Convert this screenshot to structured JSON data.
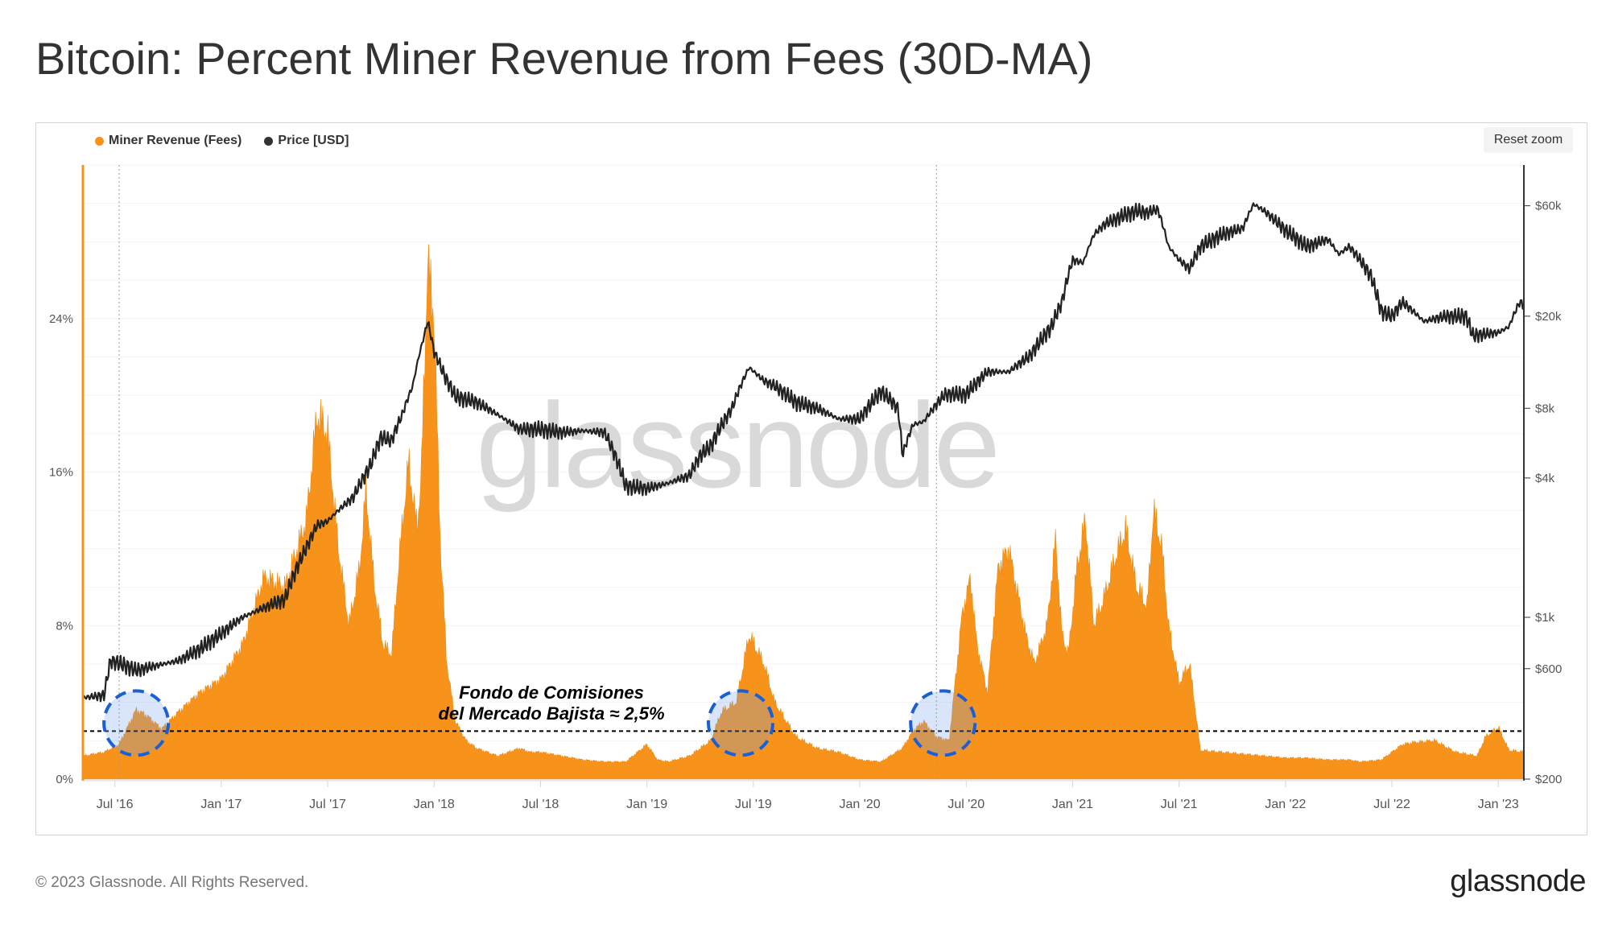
{
  "title": "Bitcoin: Percent Miner Revenue from Fees (30D-MA)",
  "legend": [
    {
      "label": "Miner Revenue (Fees)",
      "color": "#f7931a"
    },
    {
      "label": "Price [USD]",
      "color": "#333333"
    }
  ],
  "reset_zoom": "Reset zoom",
  "watermark": "glassnode",
  "annotation": {
    "line1": "Fondo de Comisiones",
    "line2": "del Mercado Bajista ≈ 2,5%",
    "level": 2.5
  },
  "footer": {
    "copyright": "© 2023 Glassnode. All Rights Reserved.",
    "logo": "glassnode"
  },
  "colors": {
    "fees": "#f7931a",
    "price": "#222222",
    "circle": "#1a5fd8"
  },
  "chart_data": {
    "type": "area",
    "title": "Bitcoin: Percent Miner Revenue from Fees (30D-MA)",
    "x_range": [
      2016.35,
      2023.12
    ],
    "x_ticks": [
      {
        "label": "Jul '16",
        "t": 2016.5
      },
      {
        "label": "Jan '17",
        "t": 2017.0
      },
      {
        "label": "Jul '17",
        "t": 2017.5
      },
      {
        "label": "Jan '18",
        "t": 2018.0
      },
      {
        "label": "Jul '18",
        "t": 2018.5
      },
      {
        "label": "Jan '19",
        "t": 2019.0
      },
      {
        "label": "Jul '19",
        "t": 2019.5
      },
      {
        "label": "Jan '20",
        "t": 2020.0
      },
      {
        "label": "Jul '20",
        "t": 2020.5
      },
      {
        "label": "Jan '21",
        "t": 2021.0
      },
      {
        "label": "Jul '21",
        "t": 2021.5
      },
      {
        "label": "Jan '22",
        "t": 2022.0
      },
      {
        "label": "Jul '22",
        "t": 2022.5
      },
      {
        "label": "Jan '23",
        "t": 2023.0
      }
    ],
    "left_axis": {
      "label": "Miner Revenue (Fees) %",
      "ylim": [
        0,
        32
      ],
      "ticks": [
        {
          "label": "0%",
          "v": 0
        },
        {
          "label": "8%",
          "v": 8
        },
        {
          "label": "16%",
          "v": 16
        },
        {
          "label": "24%",
          "v": 24
        }
      ]
    },
    "right_axis": {
      "label": "Price [USD]",
      "scale": "log",
      "ylim": [
        200,
        90000
      ],
      "ticks": [
        {
          "label": "$200",
          "v": 200
        },
        {
          "label": "$600",
          "v": 600
        },
        {
          "label": "$1k",
          "v": 1000
        },
        {
          "label": "$4k",
          "v": 4000
        },
        {
          "label": "$8k",
          "v": 8000
        },
        {
          "label": "$20k",
          "v": 20000
        },
        {
          "label": "$60k",
          "v": 60000
        }
      ]
    },
    "vertical_markers": [
      2016.52,
      2020.36
    ],
    "series": [
      {
        "name": "Miner Revenue (Fees)",
        "axis": "left",
        "type": "area",
        "color": "#f7931a",
        "t": [
          2016.35,
          2016.45,
          2016.52,
          2016.6,
          2016.65,
          2016.72,
          2016.8,
          2016.9,
          2017.0,
          2017.1,
          2017.2,
          2017.3,
          2017.4,
          2017.45,
          2017.5,
          2017.55,
          2017.6,
          2017.65,
          2017.68,
          2017.72,
          2017.76,
          2017.8,
          2017.84,
          2017.88,
          2017.92,
          2017.94,
          2017.97,
          2018.0,
          2018.03,
          2018.06,
          2018.1,
          2018.15,
          2018.2,
          2018.3,
          2018.4,
          2018.45,
          2018.5,
          2018.6,
          2018.7,
          2018.8,
          2018.9,
          2019.0,
          2019.05,
          2019.1,
          2019.2,
          2019.3,
          2019.35,
          2019.42,
          2019.48,
          2019.55,
          2019.6,
          2019.7,
          2019.8,
          2019.9,
          2020.0,
          2020.1,
          2020.2,
          2020.25,
          2020.3,
          2020.36,
          2020.42,
          2020.48,
          2020.52,
          2020.55,
          2020.6,
          2020.65,
          2020.7,
          2020.78,
          2020.82,
          2020.88,
          2020.92,
          2020.95,
          2020.98,
          2021.02,
          2021.06,
          2021.1,
          2021.15,
          2021.2,
          2021.25,
          2021.3,
          2021.35,
          2021.38,
          2021.42,
          2021.45,
          2021.5,
          2021.55,
          2021.6,
          2021.7,
          2021.8,
          2021.9,
          2022.0,
          2022.1,
          2022.2,
          2022.3,
          2022.35,
          2022.45,
          2022.55,
          2022.6,
          2022.7,
          2022.8,
          2022.9,
          2022.94,
          2023.0,
          2023.05,
          2023.12
        ],
        "values": [
          1.2,
          1.4,
          1.8,
          3.6,
          3.3,
          2.6,
          3.5,
          4.5,
          5.2,
          7.0,
          10.5,
          10.0,
          13.5,
          19.0,
          18.0,
          12.0,
          8.0,
          11.0,
          15.0,
          10.0,
          7.0,
          6.5,
          12.0,
          16.5,
          13.0,
          16.0,
          27.0,
          24.0,
          12.0,
          6.0,
          3.0,
          2.0,
          1.6,
          1.2,
          1.6,
          1.4,
          1.4,
          1.2,
          1.0,
          0.9,
          0.9,
          1.8,
          1.0,
          0.9,
          1.2,
          2.0,
          3.5,
          4.0,
          7.5,
          6.0,
          4.0,
          2.2,
          1.6,
          1.4,
          1.0,
          0.9,
          1.6,
          2.5,
          3.0,
          2.2,
          2.0,
          8.5,
          10.5,
          7.0,
          4.5,
          11.0,
          12.0,
          7.5,
          6.0,
          8.0,
          12.5,
          7.5,
          6.5,
          11.0,
          13.5,
          8.0,
          9.5,
          11.5,
          13.0,
          10.0,
          9.0,
          14.0,
          12.0,
          8.0,
          5.0,
          6.0,
          1.5,
          1.4,
          1.3,
          1.2,
          1.1,
          1.1,
          1.0,
          1.0,
          0.9,
          1.0,
          1.8,
          1.9,
          2.0,
          1.4,
          1.2,
          2.2,
          2.7,
          1.5,
          1.4
        ]
      },
      {
        "name": "Price [USD]",
        "axis": "right",
        "type": "line",
        "color": "#222222",
        "t": [
          2016.35,
          2016.45,
          2016.48,
          2016.55,
          2016.6,
          2016.7,
          2016.8,
          2016.9,
          2017.0,
          2017.1,
          2017.2,
          2017.3,
          2017.4,
          2017.45,
          2017.5,
          2017.55,
          2017.62,
          2017.7,
          2017.75,
          2017.8,
          2017.85,
          2017.9,
          2017.95,
          2017.97,
          2018.0,
          2018.05,
          2018.1,
          2018.2,
          2018.3,
          2018.4,
          2018.5,
          2018.6,
          2018.7,
          2018.8,
          2018.87,
          2018.9,
          2019.0,
          2019.1,
          2019.2,
          2019.25,
          2019.3,
          2019.4,
          2019.48,
          2019.55,
          2019.6,
          2019.7,
          2019.8,
          2019.9,
          2020.0,
          2020.1,
          2020.18,
          2020.2,
          2020.25,
          2020.3,
          2020.4,
          2020.5,
          2020.6,
          2020.7,
          2020.8,
          2020.9,
          2020.95,
          2021.0,
          2021.05,
          2021.1,
          2021.15,
          2021.25,
          2021.3,
          2021.35,
          2021.4,
          2021.45,
          2021.5,
          2021.55,
          2021.6,
          2021.7,
          2021.8,
          2021.85,
          2021.9,
          2022.0,
          2022.1,
          2022.2,
          2022.25,
          2022.3,
          2022.4,
          2022.45,
          2022.5,
          2022.55,
          2022.65,
          2022.75,
          2022.85,
          2022.88,
          2022.95,
          2023.0,
          2023.05,
          2023.1,
          2023.12
        ],
        "values": [
          450,
          460,
          650,
          620,
          590,
          620,
          650,
          730,
          850,
          1000,
          1100,
          1200,
          2000,
          2500,
          2600,
          2900,
          3300,
          4500,
          6000,
          5800,
          7500,
          10000,
          16000,
          19000,
          14000,
          11000,
          9000,
          8500,
          7500,
          6500,
          6500,
          6300,
          6400,
          6300,
          4500,
          3700,
          3600,
          3800,
          4100,
          5000,
          5500,
          8000,
          12000,
          10500,
          10000,
          8500,
          8000,
          7200,
          7200,
          9500,
          8000,
          5000,
          6800,
          7000,
          9200,
          9200,
          11500,
          11500,
          13500,
          18000,
          23000,
          35000,
          34000,
          45000,
          50000,
          55000,
          57000,
          56000,
          58000,
          40000,
          35000,
          32000,
          40000,
          45000,
          48000,
          61000,
          57000,
          47000,
          40000,
          43000,
          37000,
          40000,
          30000,
          21000,
          20000,
          23000,
          19000,
          20000,
          20000,
          16500,
          16800,
          17000,
          18000,
          23000,
          22500
        ]
      }
    ]
  }
}
